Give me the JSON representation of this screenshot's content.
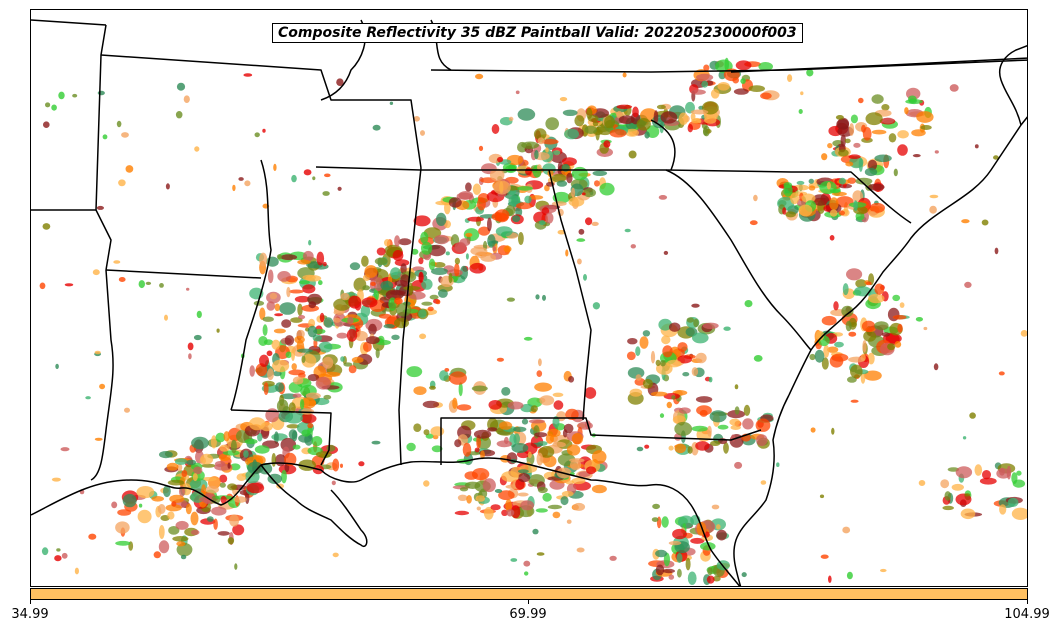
{
  "title": "Composite Reflectivity 35 dBZ Paintball Valid: 202205230000f003",
  "colorbar": {
    "color": "#ffc061",
    "ticks": [
      "34.99",
      "69.99",
      "104.99"
    ]
  },
  "palette": {
    "background": "#ffffff",
    "boundary": "#000000",
    "member_colors": [
      "#e60000",
      "#ff7f00",
      "#3cb371",
      "#2e8b57",
      "#8b1a1a",
      "#808000",
      "#32cd32",
      "#f4a460",
      "#ffb347",
      "#cd5c5c",
      "#6b8e23",
      "#ff4500"
    ]
  },
  "map": {
    "region": "Southeastern United States",
    "features": [
      "state-boundaries",
      "coastline",
      "reflectivity-paintball"
    ]
  }
}
